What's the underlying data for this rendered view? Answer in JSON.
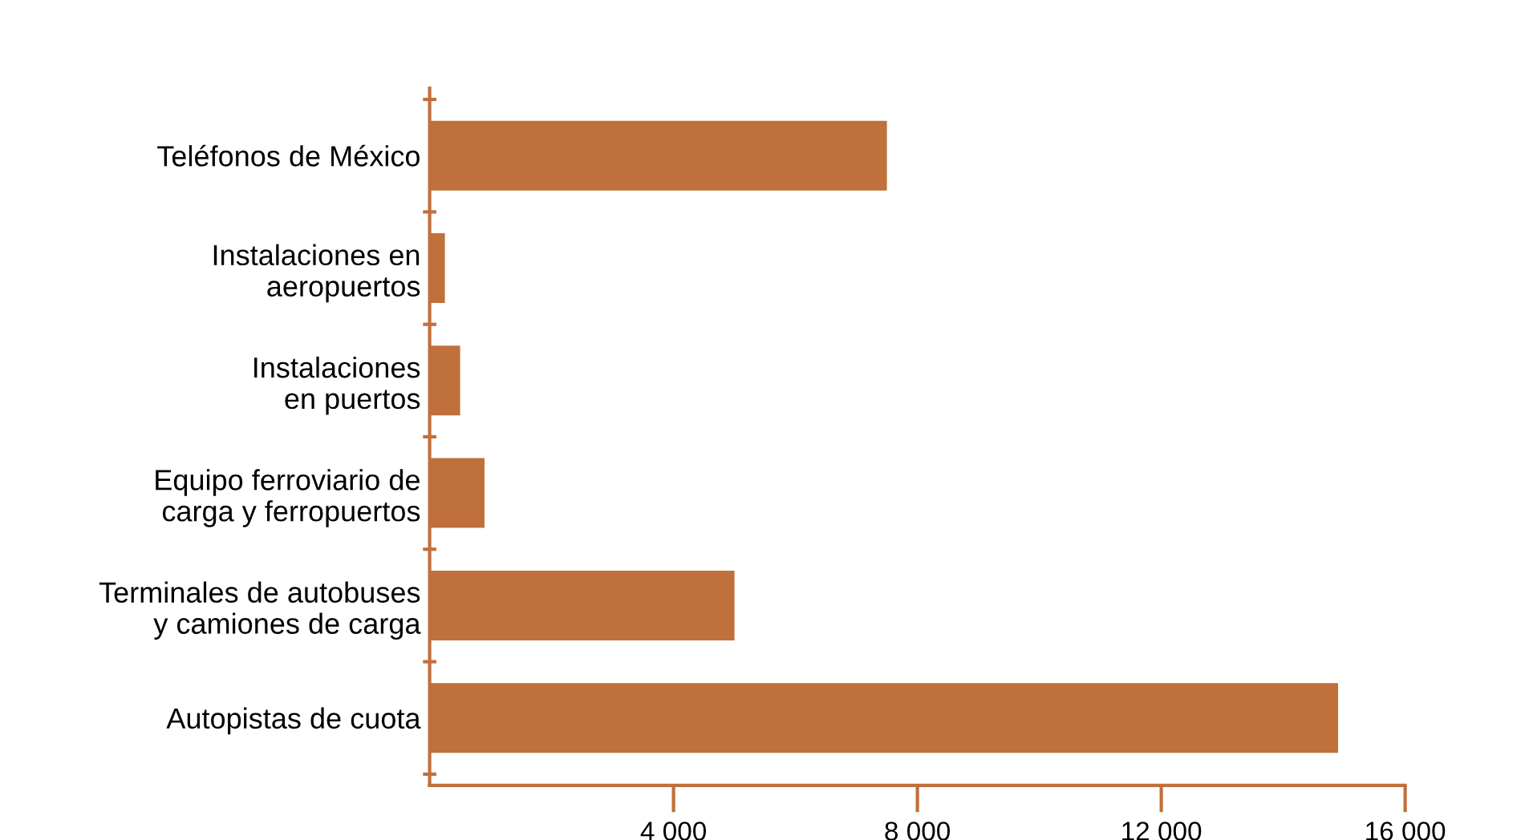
{
  "chart_data": {
    "type": "bar",
    "orientation": "horizontal",
    "categories": [
      "Teléfonos de México",
      "Instalaciones en\naeropuertos",
      "Instalaciones\nen puertos",
      "Equipo ferroviario de\ncarga y ferropuertos",
      "Terminales de autobuses\ny camiones de carga",
      "Autopistas de cuota"
    ],
    "values": [
      7500,
      250,
      500,
      900,
      5000,
      14900
    ],
    "colors": [
      "#c0703a",
      "#c0703a",
      "#c0703a",
      "#c0703a",
      "#c0703a",
      "#c0703a"
    ],
    "xlim": [
      0,
      16000
    ],
    "xticks": [
      {
        "value": 4000,
        "label": "4 000"
      },
      {
        "value": 8000,
        "label": "8 000"
      },
      {
        "value": 12000,
        "label": "12 000"
      },
      {
        "value": 16000,
        "label": "16 000"
      }
    ],
    "grid": false
  }
}
